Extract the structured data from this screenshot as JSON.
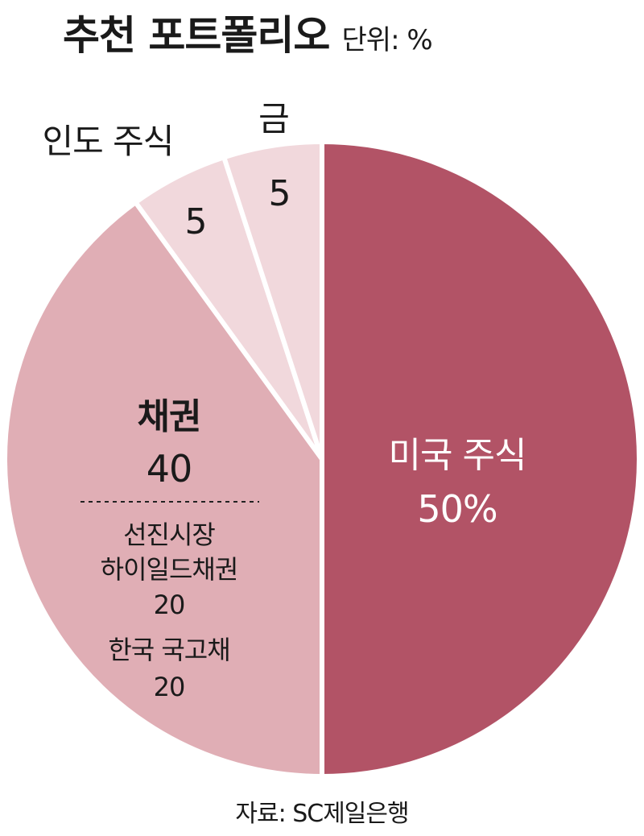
{
  "header": {
    "title": "추천 포트폴리오",
    "unit": "단위: %"
  },
  "chart_data": {
    "type": "pie",
    "title": "추천 포트폴리오",
    "unit": "%",
    "slices": [
      {
        "label": "미국 주식",
        "value": 50,
        "value_text": "50%",
        "color": "#b25366"
      },
      {
        "label": "채권",
        "value": 40,
        "value_text": "40",
        "color": "#e0aeb5",
        "sub_items": [
          {
            "label": "선진시장 하이일드채권",
            "label_lines": [
              "선진시장",
              "하이일드채권"
            ],
            "value": 20,
            "value_text": "20"
          },
          {
            "label": "한국 국고채",
            "label_lines": [
              "한국 국고채"
            ],
            "value": 20,
            "value_text": "20"
          }
        ]
      },
      {
        "label": "인도 주식",
        "value": 5,
        "value_text": "5",
        "color": "#f1d8dc"
      },
      {
        "label": "금",
        "value": 5,
        "value_text": "5",
        "color": "#f1d8dc"
      }
    ]
  },
  "footer": {
    "source": "자료: SC제일은행"
  }
}
